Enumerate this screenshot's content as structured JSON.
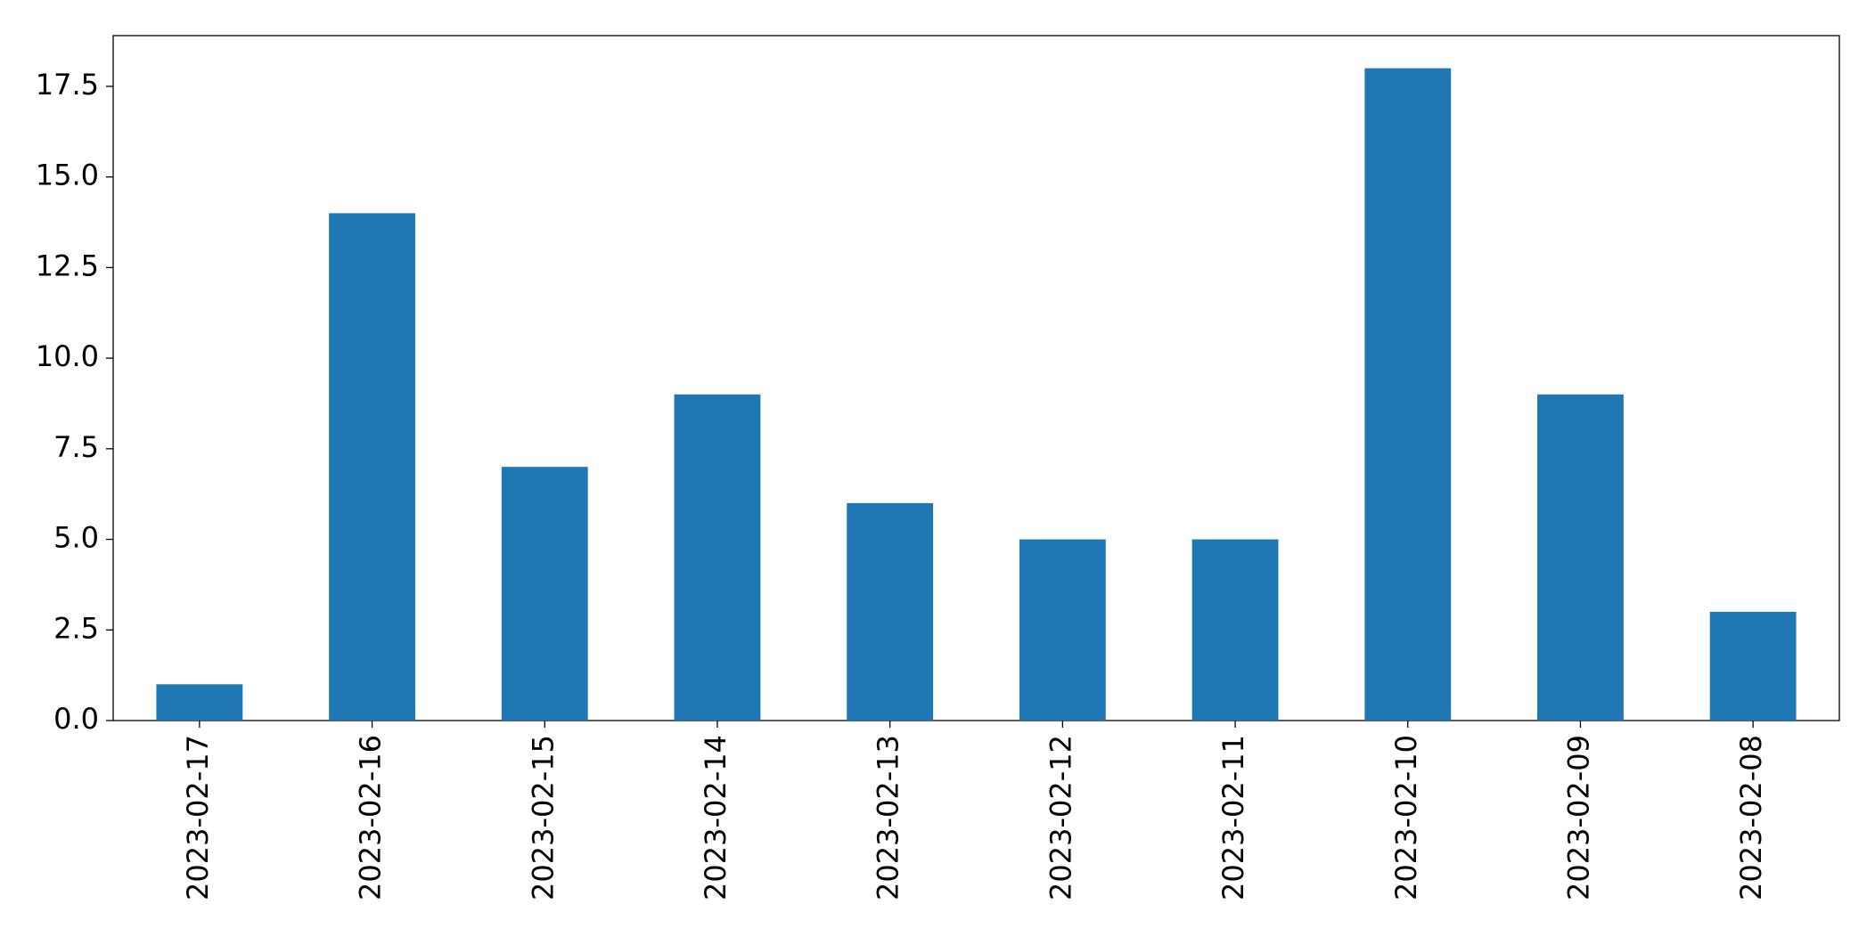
{
  "chart_data": {
    "type": "bar",
    "categories": [
      "2023-02-17",
      "2023-02-16",
      "2023-02-15",
      "2023-02-14",
      "2023-02-13",
      "2023-02-12",
      "2023-02-11",
      "2023-02-10",
      "2023-02-09",
      "2023-02-08"
    ],
    "values": [
      1,
      14,
      7,
      9,
      6,
      5,
      5,
      18,
      9,
      3
    ],
    "color": "#1f77b4",
    "ylim": [
      0,
      18.9
    ],
    "yticks": [
      {
        "value": 0,
        "label": "0.0"
      },
      2.5,
      {
        "value": 5,
        "label": "5.0"
      },
      7.5,
      {
        "value": 10,
        "label": "10.0"
      },
      12.5,
      {
        "value": 15,
        "label": "15.0"
      },
      17.5
    ],
    "grid": false
  }
}
